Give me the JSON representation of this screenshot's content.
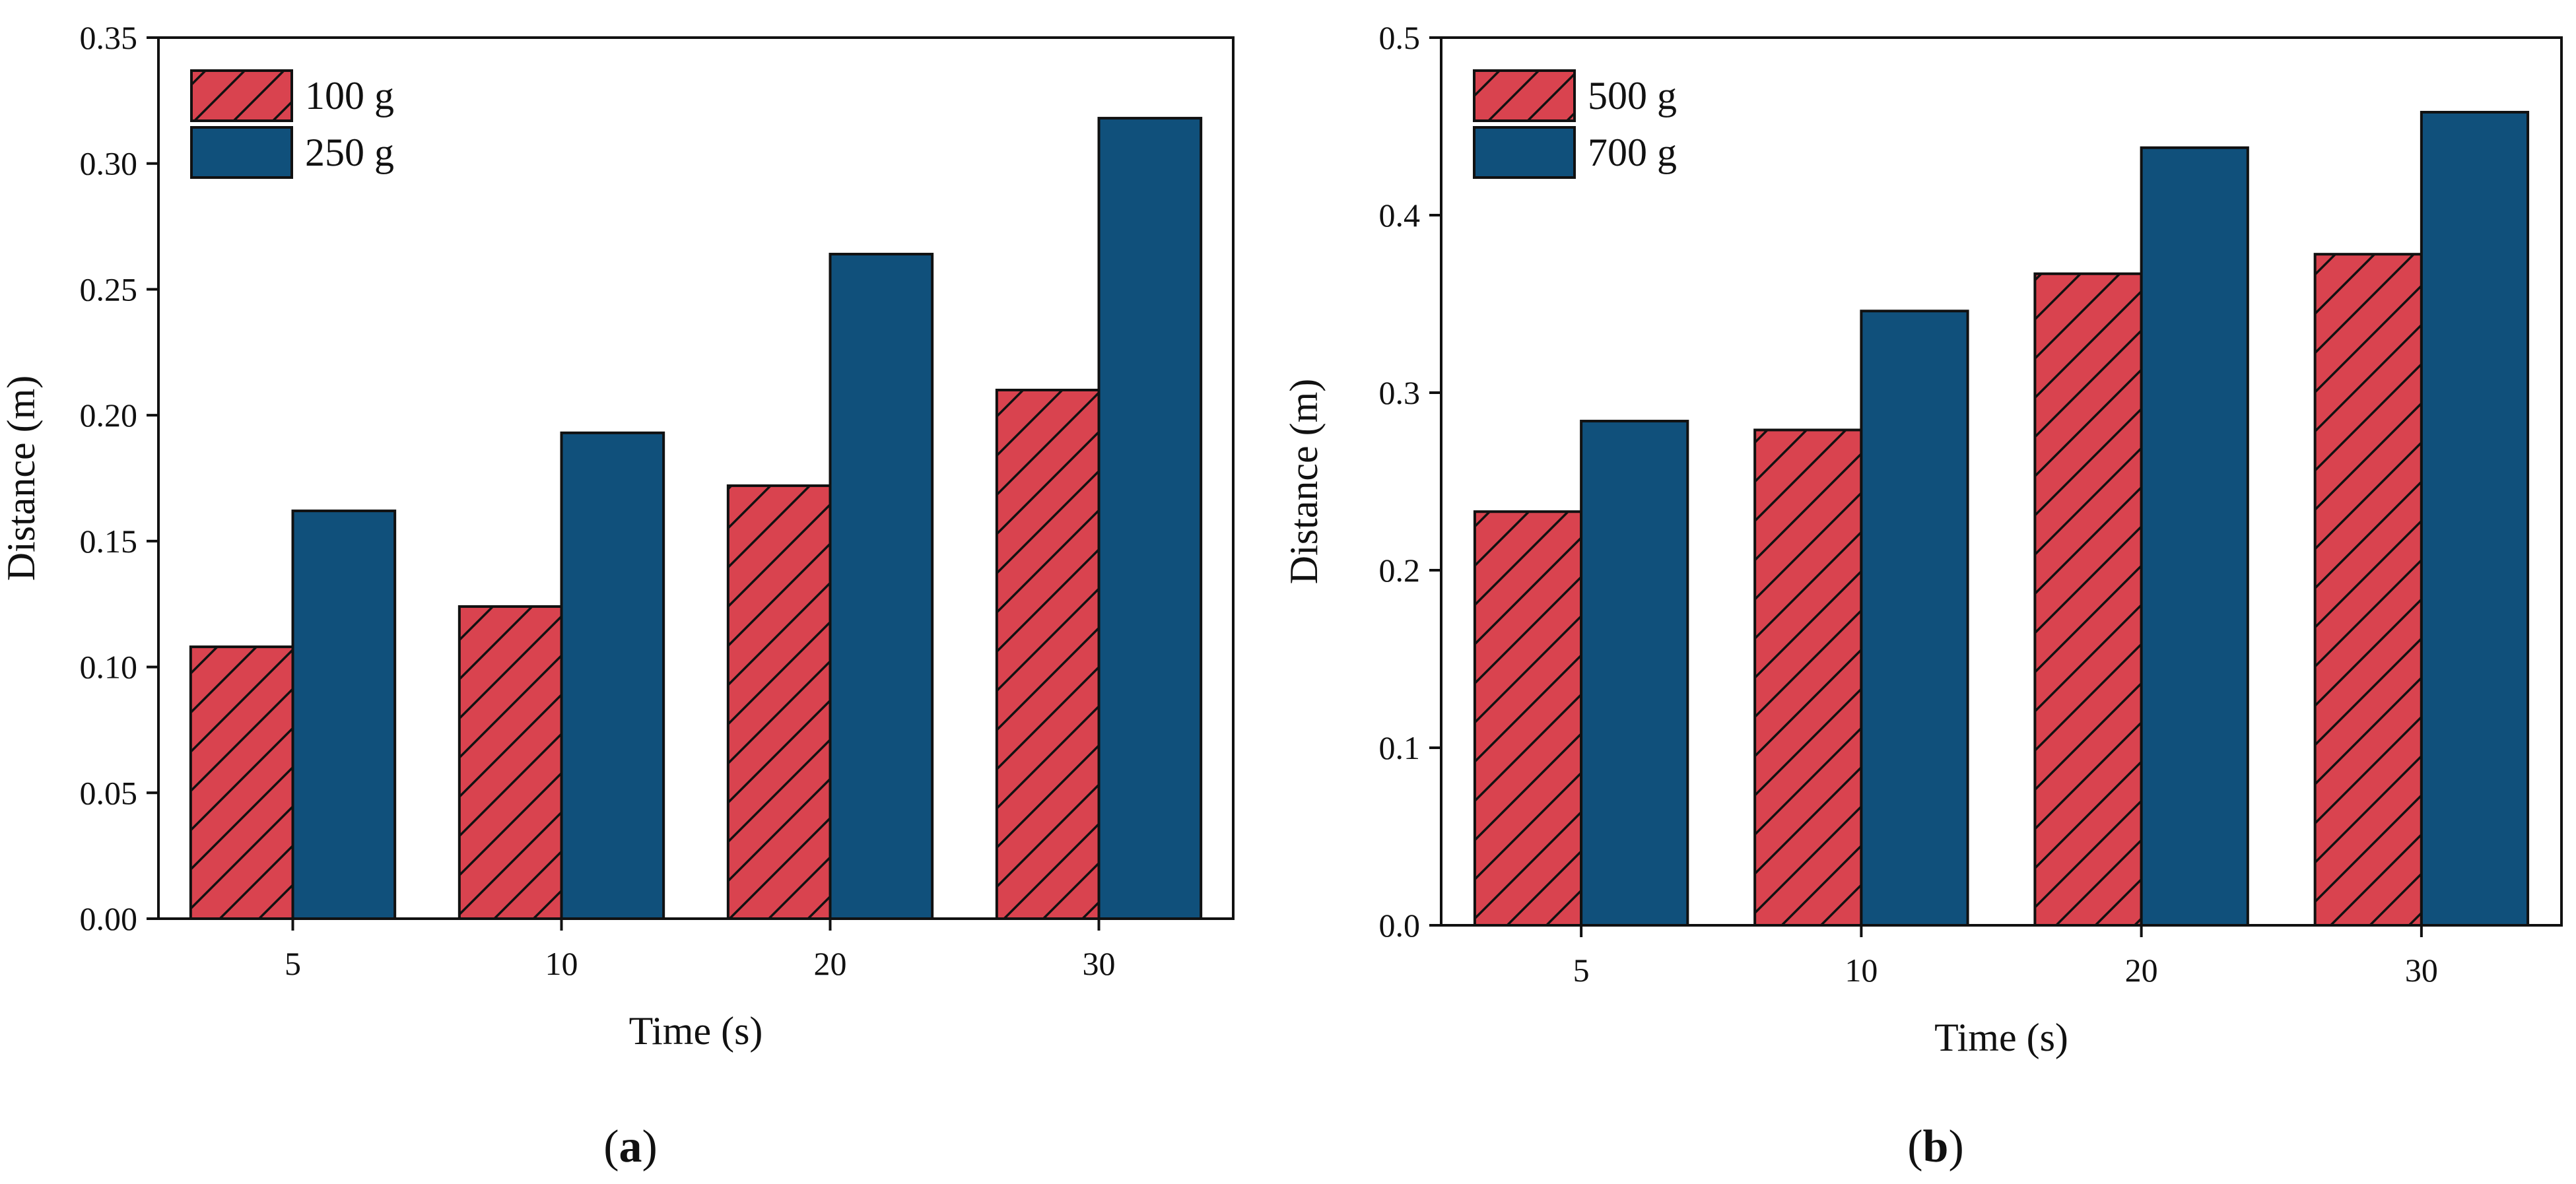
{
  "chart_data": [
    {
      "type": "bar",
      "panel_label": {
        "open": "(",
        "letter": "a",
        "close": ")"
      },
      "categories": [
        "5",
        "10",
        "20",
        "30"
      ],
      "series": [
        {
          "name": "100 g",
          "values": [
            0.108,
            0.124,
            0.172,
            0.21
          ],
          "color": "#d9434f",
          "pattern": "hatch"
        },
        {
          "name": "250 g",
          "values": [
            0.162,
            0.193,
            0.264,
            0.318
          ],
          "color": "#10507b",
          "pattern": "solid"
        }
      ],
      "xlabel": "Time (s)",
      "ylabel": "Distance (m)",
      "ylim": [
        0,
        0.35
      ],
      "yticks": [
        "0.00",
        "0.05",
        "0.10",
        "0.15",
        "0.20",
        "0.25",
        "0.30",
        "0.35"
      ],
      "legend": "top-left",
      "grid": false
    },
    {
      "type": "bar",
      "panel_label": {
        "open": "(",
        "letter": "b",
        "close": ")"
      },
      "categories": [
        "5",
        "10",
        "20",
        "30"
      ],
      "series": [
        {
          "name": "500 g",
          "values": [
            0.233,
            0.279,
            0.367,
            0.378
          ],
          "color": "#d9434f",
          "pattern": "hatch"
        },
        {
          "name": "700 g",
          "values": [
            0.284,
            0.346,
            0.438,
            0.458
          ],
          "color": "#10507b",
          "pattern": "solid"
        }
      ],
      "xlabel": "Time (s)",
      "ylabel": "Distance (m)",
      "ylim": [
        0,
        0.5
      ],
      "yticks": [
        "0.0",
        "0.1",
        "0.2",
        "0.3",
        "0.4",
        "0.5"
      ],
      "legend": "top-left",
      "grid": false
    }
  ]
}
